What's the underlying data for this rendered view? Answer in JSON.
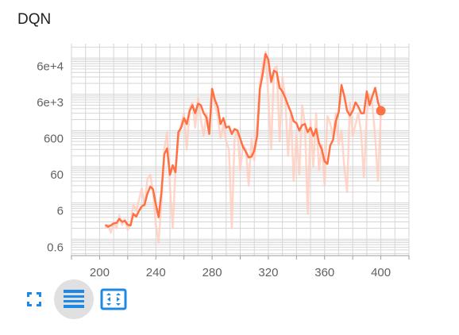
{
  "card": {
    "title": "DQN"
  },
  "toolbar": {
    "items": [
      {
        "icon": "fullscreen-icon",
        "active": false
      },
      {
        "icon": "toggle-log-scale-icon",
        "active": true
      },
      {
        "icon": "fit-domain-icon",
        "active": false
      }
    ]
  },
  "colors": {
    "line": "#ff7043",
    "raw": "#ffccbc",
    "grid": "#d6d6d6",
    "axis": "#9e9e9e",
    "icon": "#1e88e5"
  },
  "chart_data": {
    "type": "line",
    "title": "DQN",
    "xlabel": "",
    "ylabel": "",
    "y_scale": "log",
    "xlim": [
      180,
      420
    ],
    "ylim": [
      0.35,
      250000
    ],
    "x_ticks": [
      200,
      240,
      280,
      320,
      360,
      400
    ],
    "x_tick_labels": [
      "200",
      "240",
      "280",
      "320",
      "360",
      "400"
    ],
    "y_ticks": [
      0.6,
      6,
      60,
      600,
      6000,
      60000
    ],
    "y_tick_labels": [
      "0.6",
      "6",
      "60",
      "600",
      "6e+3",
      "6e+4"
    ],
    "grid": true,
    "series": [
      {
        "role": "raw",
        "x": [
          204,
          206,
          208,
          210,
          212,
          214,
          216,
          218,
          220,
          222,
          224,
          226,
          228,
          230,
          232,
          234,
          236,
          238,
          240,
          242,
          244,
          246,
          248,
          250,
          252,
          254,
          256,
          258,
          260,
          262,
          264,
          266,
          268,
          270,
          272,
          274,
          276,
          278,
          280,
          282,
          284,
          286,
          288,
          290,
          292,
          294,
          296,
          298,
          300,
          302,
          304,
          306,
          308,
          310,
          312,
          314,
          316,
          318,
          320,
          322,
          324,
          326,
          328,
          330,
          332,
          334,
          336,
          338,
          340,
          342,
          344,
          346,
          348,
          350,
          352,
          354,
          356,
          358,
          360,
          362,
          364,
          366,
          368,
          370,
          372,
          374,
          376,
          378,
          380,
          382,
          384,
          386,
          388,
          390,
          392,
          394,
          396,
          398,
          400
        ],
        "y": [
          2,
          2.5,
          1.5,
          3,
          2,
          4.5,
          2.5,
          3.5,
          1.8,
          2.5,
          9,
          6,
          12,
          25,
          8,
          45,
          60,
          20,
          2.5,
          0.8,
          12,
          300,
          900,
          30,
          2,
          80,
          600,
          1500,
          3000,
          300,
          4000,
          6000,
          1200,
          8000,
          2000,
          700,
          3000,
          900,
          15000,
          5000,
          2500,
          600,
          1500,
          500,
          300,
          2,
          600,
          1000,
          80,
          400,
          300,
          30,
          600,
          150,
          1500,
          20000,
          60000,
          150000,
          8000,
          300,
          50000,
          60000,
          500,
          30000,
          8000,
          200,
          3000,
          40,
          800,
          60,
          5000,
          1500,
          5,
          2000,
          100,
          3000,
          80,
          400,
          30,
          2500,
          1600,
          700,
          3000,
          400,
          1000,
          100,
          20,
          6000,
          700,
          1500,
          3000,
          800,
          50,
          3000,
          10000,
          5000,
          600,
          40,
          3000
        ]
      },
      {
        "role": "smoothed",
        "x": [
          204,
          206,
          208,
          210,
          212,
          214,
          216,
          218,
          220,
          222,
          224,
          226,
          228,
          230,
          232,
          234,
          236,
          238,
          240,
          242,
          244,
          246,
          248,
          250,
          252,
          254,
          256,
          258,
          260,
          262,
          264,
          266,
          268,
          270,
          272,
          274,
          276,
          278,
          280,
          282,
          284,
          286,
          288,
          290,
          292,
          294,
          296,
          298,
          300,
          302,
          304,
          306,
          308,
          310,
          312,
          314,
          316,
          318,
          320,
          322,
          324,
          326,
          328,
          330,
          332,
          334,
          336,
          338,
          340,
          342,
          344,
          346,
          348,
          350,
          352,
          354,
          356,
          358,
          360,
          362,
          364,
          366,
          368,
          370,
          372,
          374,
          376,
          378,
          380,
          382,
          384,
          386,
          388,
          390,
          392,
          394,
          396,
          398,
          400
        ],
        "y": [
          2.5,
          2.2,
          2.4,
          2.7,
          2.8,
          3.6,
          3,
          3.2,
          2.5,
          2.4,
          5,
          4.2,
          6,
          8,
          9,
          18,
          28,
          24,
          9,
          4,
          20,
          220,
          320,
          60,
          110,
          70,
          900,
          1200,
          2200,
          1500,
          3500,
          5000,
          3000,
          5500,
          5000,
          3000,
          2300,
          800,
          14000,
          7000,
          4500,
          1500,
          2200,
          1200,
          1300,
          800,
          1100,
          1000,
          600,
          350,
          260,
          180,
          190,
          280,
          700,
          14000,
          36000,
          130000,
          90000,
          22000,
          45000,
          40000,
          15000,
          12000,
          8000,
          5000,
          3200,
          1800,
          1600,
          1000,
          1400,
          1500,
          900,
          1200,
          700,
          1100,
          450,
          300,
          140,
          120,
          380,
          550,
          1800,
          3200,
          18000,
          9000,
          3500,
          2600,
          3500,
          6000,
          4500,
          3000,
          3000,
          12000,
          5000,
          9000,
          15000,
          6000,
          3500
        ]
      }
    ],
    "last_point": {
      "x": 400,
      "y": 3500
    }
  }
}
